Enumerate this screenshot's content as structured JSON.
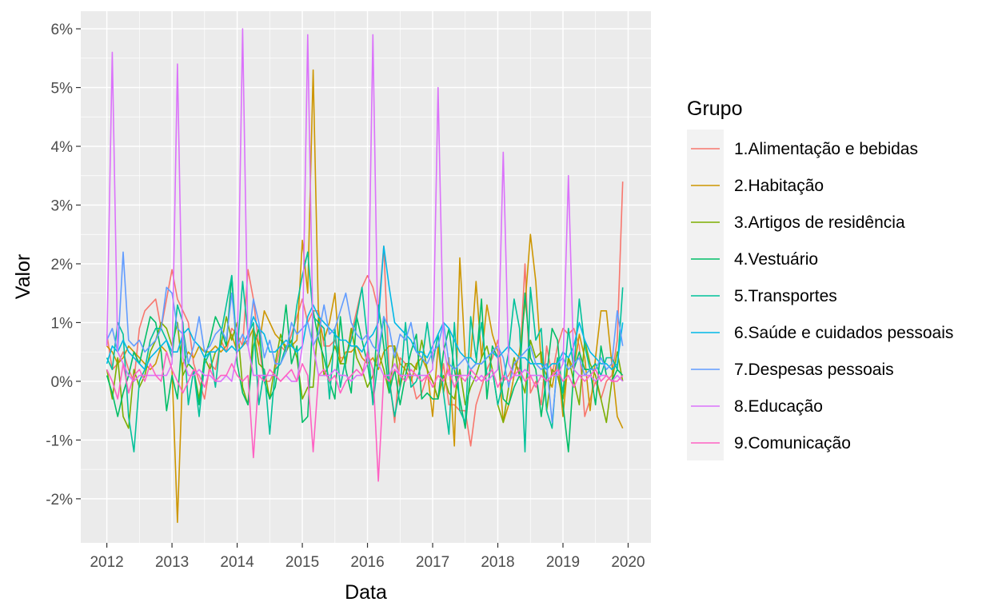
{
  "chart_data": {
    "type": "line",
    "xlabel": "Data",
    "ylabel": "Valor",
    "xlim": [
      2011.6,
      2020.35
    ],
    "ylim": [
      -2.75,
      6.3
    ],
    "x_ticks": [
      2012,
      2013,
      2014,
      2015,
      2016,
      2017,
      2018,
      2019,
      2020
    ],
    "x_tick_labels": [
      "2012",
      "2013",
      "2014",
      "2015",
      "2016",
      "2017",
      "2018",
      "2019",
      "2020"
    ],
    "y_ticks": [
      -2,
      -1,
      0,
      1,
      2,
      3,
      4,
      5,
      6
    ],
    "y_tick_labels": [
      "-2%",
      "-1%",
      "0%",
      "1%",
      "2%",
      "3%",
      "4%",
      "5%",
      "6%"
    ],
    "grid": true,
    "legend_title": "Grupo",
    "legend_position": "right",
    "x": [
      "2012-01",
      "2012-02",
      "2012-03",
      "2012-04",
      "2012-05",
      "2012-06",
      "2012-07",
      "2012-08",
      "2012-09",
      "2012-10",
      "2012-11",
      "2012-12",
      "2013-01",
      "2013-02",
      "2013-03",
      "2013-04",
      "2013-05",
      "2013-06",
      "2013-07",
      "2013-08",
      "2013-09",
      "2013-10",
      "2013-11",
      "2013-12",
      "2014-01",
      "2014-02",
      "2014-03",
      "2014-04",
      "2014-05",
      "2014-06",
      "2014-07",
      "2014-08",
      "2014-09",
      "2014-10",
      "2014-11",
      "2014-12",
      "2015-01",
      "2015-02",
      "2015-03",
      "2015-04",
      "2015-05",
      "2015-06",
      "2015-07",
      "2015-08",
      "2015-09",
      "2015-10",
      "2015-11",
      "2015-12",
      "2016-01",
      "2016-02",
      "2016-03",
      "2016-04",
      "2016-05",
      "2016-06",
      "2016-07",
      "2016-08",
      "2016-09",
      "2016-10",
      "2016-11",
      "2016-12",
      "2017-01",
      "2017-02",
      "2017-03",
      "2017-04",
      "2017-05",
      "2017-06",
      "2017-07",
      "2017-08",
      "2017-09",
      "2017-10",
      "2017-11",
      "2017-12",
      "2018-01",
      "2018-02",
      "2018-03",
      "2018-04",
      "2018-05",
      "2018-06",
      "2018-07",
      "2018-08",
      "2018-09",
      "2018-10",
      "2018-11",
      "2018-12",
      "2019-01",
      "2019-02",
      "2019-03",
      "2019-04",
      "2019-05",
      "2019-06",
      "2019-07",
      "2019-08",
      "2019-09",
      "2019-10",
      "2019-11",
      "2019-12"
    ],
    "series": [
      {
        "name": "1.Alimentação e bebidas",
        "color": "#F8766D",
        "values": [
          0.8,
          0.2,
          0.3,
          0.5,
          0.2,
          0.0,
          0.9,
          1.2,
          1.3,
          1.4,
          0.9,
          1.4,
          1.9,
          1.4,
          1.2,
          1.0,
          0.3,
          0.0,
          -0.3,
          0.3,
          0.2,
          0.7,
          0.5,
          0.9,
          0.8,
          0.6,
          1.9,
          1.4,
          0.6,
          0.0,
          0.0,
          0.2,
          0.6,
          0.5,
          0.8,
          1.1,
          1.4,
          1.0,
          1.2,
          1.2,
          0.6,
          0.6,
          0.7,
          0.4,
          0.4,
          0.8,
          1.2,
          1.6,
          1.8,
          1.6,
          1.2,
          2.3,
          0.1,
          -0.7,
          0.4,
          0.3,
          0.1,
          -0.3,
          -0.2,
          0.1,
          0.0,
          -0.3,
          0.3,
          -0.4,
          -0.4,
          -0.5,
          -0.5,
          -1.1,
          -0.4,
          -0.1,
          0.2,
          0.4,
          0.7,
          0.0,
          0.1,
          0.3,
          0.2,
          2.0,
          -0.2,
          0.0,
          -0.4,
          0.6,
          0.1,
          0.6,
          0.9,
          0.8,
          0.9,
          0.6,
          -0.6,
          -0.3,
          0.0,
          -0.3,
          0.0,
          0.1,
          0.7,
          3.4
        ]
      },
      {
        "name": "2.Habitação",
        "color": "#CD9600",
        "values": [
          0.6,
          0.5,
          0.3,
          0.4,
          0.6,
          0.5,
          0.4,
          0.3,
          0.2,
          0.3,
          0.6,
          0.5,
          0.2,
          -2.4,
          0.3,
          0.5,
          0.4,
          0.6,
          0.5,
          0.5,
          0.6,
          0.5,
          0.6,
          0.8,
          0.5,
          0.6,
          0.7,
          0.9,
          0.6,
          1.2,
          1.0,
          0.8,
          0.7,
          0.6,
          0.6,
          0.7,
          2.4,
          1.5,
          5.3,
          1.0,
          0.7,
          1.0,
          1.5,
          0.3,
          0.5,
          0.5,
          0.6,
          0.4,
          0.3,
          0.4,
          0.2,
          0.5,
          0.6,
          0.6,
          0.3,
          0.2,
          0.0,
          0.3,
          0.4,
          0.2,
          -0.6,
          0.6,
          -0.2,
          0.4,
          -1.1,
          2.1,
          0.4,
          0.4,
          1.7,
          0.4,
          1.3,
          0.8,
          0.5,
          -0.7,
          -0.4,
          0.1,
          0.5,
          1.3,
          2.5,
          1.7,
          0.3,
          0.1,
          -0.1,
          0.4,
          -0.6,
          0.4,
          0.2,
          0.8,
          0.4,
          -0.5,
          0.4,
          1.2,
          1.2,
          0.3,
          -0.6,
          -0.8
        ]
      },
      {
        "name": "3.Artigos de residência",
        "color": "#7CAE00",
        "values": [
          0.2,
          -0.3,
          0.4,
          -0.6,
          -0.8,
          0.2,
          -0.1,
          0.1,
          0.5,
          0.7,
          1.0,
          0.9,
          0.6,
          1.0,
          0.1,
          0.3,
          0.2,
          -0.3,
          0.4,
          0.2,
          0.5,
          0.6,
          1.1,
          0.7,
          1.0,
          -0.1,
          -0.4,
          0.9,
          0.3,
          0.2,
          -0.3,
          0.3,
          0.8,
          0.5,
          0.7,
          0.4,
          -0.3,
          -0.1,
          -0.1,
          1.1,
          0.1,
          0.3,
          0.6,
          0.3,
          0.3,
          0.9,
          0.4,
          0.2,
          -0.1,
          0.1,
          0.5,
          0.2,
          -0.2,
          0.6,
          -0.1,
          0.3,
          0.3,
          0.2,
          0.7,
          0.2,
          0.0,
          -0.3,
          0.1,
          -0.2,
          -0.3,
          0.2,
          -0.4,
          -0.1,
          0.1,
          0.4,
          0.6,
          0.2,
          -0.4,
          -0.7,
          -0.1,
          0.4,
          0.1,
          -0.2,
          0.7,
          0.4,
          0.5,
          -0.5,
          0.2,
          0.1,
          -0.3,
          0.4,
          0.0,
          -0.4,
          0.7,
          0.3,
          0.1,
          -0.3,
          -0.7,
          0.0,
          0.5,
          0.0
        ]
      },
      {
        "name": "4.Vestuário",
        "color": "#00BE67",
        "values": [
          0.1,
          -0.2,
          -0.6,
          -0.2,
          0.1,
          0.5,
          0.3,
          0.7,
          1.1,
          1.0,
          0.5,
          -0.5,
          0.1,
          -0.3,
          0.9,
          0.3,
          0.2,
          -0.4,
          0.4,
          0.7,
          1.1,
          0.9,
          0.6,
          1.8,
          0.3,
          -0.2,
          -0.4,
          0.6,
          0.9,
          0.0,
          -0.3,
          -0.1,
          0.5,
          1.3,
          0.3,
          0.6,
          -0.7,
          -0.6,
          1.2,
          0.7,
          0.4,
          0.0,
          -0.3,
          1.1,
          0.2,
          -0.2,
          1.1,
          0.7,
          0.3,
          -0.3,
          1.3,
          0.6,
          -0.2,
          0.2,
          -0.4,
          0.1,
          0.5,
          0.8,
          -0.3,
          -0.2,
          -0.3,
          -0.3,
          0.5,
          0.9,
          0.2,
          -0.3,
          -0.8,
          0.2,
          0.3,
          1.4,
          -0.3,
          0.6,
          0.4,
          -0.3,
          -0.4,
          -0.1,
          0.1,
          1.5,
          0.4,
          0.2,
          -0.6,
          0.1,
          0.9,
          0.7,
          -0.4,
          -1.2,
          0.2,
          0.5,
          0.2,
          0.2,
          -0.4,
          0.6,
          0.1,
          0.0,
          0.2,
          0.1
        ]
      },
      {
        "name": "5.Transportes",
        "color": "#00C19A",
        "values": [
          0.4,
          0.2,
          1.0,
          0.8,
          -0.6,
          -1.2,
          0.0,
          0.2,
          0.7,
          0.9,
          0.9,
          0.7,
          0.4,
          1.3,
          1.0,
          -0.4,
          0.2,
          -0.6,
          0.3,
          0.5,
          -0.1,
          0.8,
          1.3,
          1.8,
          0.5,
          1.7,
          0.8,
          1.0,
          -0.4,
          0.2,
          -0.9,
          0.2,
          0.3,
          0.6,
          0.6,
          1.3,
          1.8,
          2.2,
          1.1,
          1.0,
          0.9,
          -0.3,
          0.9,
          -0.1,
          0.4,
          0.7,
          1.1,
          1.6,
          0.7,
          -0.4,
          0.4,
          1.1,
          0.0,
          -0.6,
          -0.1,
          1.0,
          -0.1,
          0.0,
          0.3,
          1.0,
          0.3,
          0.8,
          -0.2,
          -0.9,
          1.0,
          -0.5,
          -0.7,
          1.1,
          0.4,
          1.0,
          0.1,
          0.2,
          -0.4,
          0.0,
          0.5,
          1.4,
          0.9,
          -1.2,
          1.6,
          0.7,
          0.9,
          -0.5,
          -0.8,
          0.4,
          -0.2,
          0.9,
          0.2,
          1.4,
          0.6,
          0.2,
          0.3,
          0.1,
          0.4,
          0.4,
          0.2,
          1.6
        ]
      },
      {
        "name": "6.Saúde e cuidados pessoais",
        "color": "#00B8E7",
        "values": [
          0.3,
          0.6,
          0.5,
          0.7,
          0.5,
          0.4,
          0.3,
          0.2,
          0.4,
          0.5,
          0.6,
          0.7,
          0.5,
          0.5,
          0.8,
          0.9,
          0.7,
          0.6,
          0.4,
          0.5,
          0.5,
          0.6,
          0.5,
          0.6,
          0.5,
          0.6,
          0.8,
          1.1,
          0.9,
          0.8,
          0.5,
          0.5,
          0.6,
          0.7,
          0.6,
          0.5,
          0.6,
          1.1,
          1.3,
          1.1,
          1.0,
          0.9,
          0.8,
          0.7,
          0.7,
          0.6,
          0.6,
          0.5,
          0.7,
          0.8,
          1.0,
          2.3,
          1.6,
          1.0,
          0.9,
          0.8,
          0.7,
          0.5,
          0.5,
          0.4,
          0.6,
          0.8,
          1.0,
          0.9,
          0.7,
          0.5,
          0.4,
          0.4,
          0.3,
          0.3,
          0.4,
          0.5,
          0.4,
          0.5,
          0.6,
          0.5,
          0.4,
          0.4,
          0.3,
          0.3,
          0.3,
          0.2,
          0.3,
          0.3,
          0.5,
          0.4,
          0.6,
          1.0,
          0.7,
          0.5,
          0.4,
          0.3,
          0.3,
          0.2,
          0.3,
          1.0
        ]
      },
      {
        "name": "7.Despesas pessoais",
        "color": "#619CFF",
        "values": [
          0.7,
          0.9,
          0.5,
          2.2,
          0.7,
          0.6,
          0.7,
          0.5,
          0.6,
          0.7,
          0.9,
          1.6,
          1.5,
          0.9,
          0.8,
          0.3,
          0.6,
          1.1,
          0.5,
          0.6,
          0.8,
          0.9,
          0.7,
          1.5,
          0.6,
          0.8,
          0.6,
          1.4,
          1.0,
          0.4,
          0.7,
          0.3,
          0.3,
          0.5,
          1.0,
          0.8,
          0.9,
          1.0,
          0.6,
          0.8,
          1.3,
          0.8,
          0.9,
          1.2,
          1.5,
          1.0,
          0.8,
          0.7,
          0.8,
          0.6,
          0.5,
          1.1,
          0.9,
          0.4,
          0.8,
          0.7,
          1.0,
          0.5,
          0.4,
          0.3,
          0.5,
          0.6,
          1.0,
          0.3,
          0.2,
          0.3,
          0.4,
          0.2,
          0.3,
          0.3,
          0.4,
          0.5,
          0.6,
          0.4,
          -0.1,
          0.3,
          0.4,
          0.5,
          0.6,
          0.3,
          0.2,
          0.3,
          -0.7,
          0.3,
          0.4,
          0.2,
          0.3,
          0.4,
          0.1,
          0.2,
          0.2,
          0.4,
          0.2,
          0.3,
          1.2,
          0.6
        ]
      },
      {
        "name": "8.Educação",
        "color": "#DB72FB",
        "values": [
          0.6,
          5.6,
          0.5,
          0.3,
          0.1,
          0.0,
          0.1,
          0.1,
          0.1,
          0.1,
          0.1,
          0.1,
          0.3,
          5.4,
          0.4,
          0.1,
          0.1,
          0.2,
          0.1,
          0.1,
          0.0,
          0.0,
          0.1,
          0.0,
          0.5,
          6.0,
          0.6,
          0.1,
          0.1,
          0.1,
          0.1,
          0.1,
          0.0,
          0.1,
          0.0,
          0.0,
          0.6,
          5.9,
          0.6,
          0.1,
          0.1,
          0.1,
          0.2,
          0.1,
          0.1,
          0.0,
          0.1,
          0.1,
          0.3,
          5.9,
          0.3,
          0.1,
          0.1,
          0.3,
          0.1,
          0.1,
          0.1,
          0.1,
          0.1,
          0.1,
          0.2,
          5.0,
          0.6,
          0.1,
          0.1,
          0.1,
          0.1,
          0.1,
          0.0,
          0.1,
          0.0,
          0.1,
          0.2,
          3.9,
          0.3,
          0.1,
          0.1,
          0.2,
          0.1,
          0.1,
          0.1,
          0.0,
          0.1,
          0.1,
          0.3,
          3.5,
          0.2,
          0.1,
          0.1,
          0.1,
          0.0,
          0.1,
          0.1,
          0.0,
          0.1,
          0.0
        ]
      },
      {
        "name": "9.Comunicação",
        "color": "#FF61C3",
        "values": [
          0.2,
          0.0,
          -0.3,
          0.3,
          -0.2,
          0.1,
          0.2,
          0.0,
          0.3,
          0.1,
          0.0,
          0.5,
          0.2,
          0.0,
          -0.2,
          0.0,
          0.2,
          0.1,
          -0.1,
          0.2,
          0.0,
          0.1,
          0.1,
          0.3,
          0.1,
          0.0,
          0.1,
          -1.3,
          0.1,
          0.0,
          0.2,
          0.1,
          0.0,
          0.1,
          0.2,
          0.0,
          0.3,
          0.1,
          -1.2,
          0.1,
          0.2,
          0.0,
          0.1,
          -0.2,
          0.0,
          0.1,
          0.2,
          0.1,
          0.5,
          0.2,
          -1.7,
          0.1,
          0.0,
          0.2,
          0.1,
          0.0,
          0.2,
          0.1,
          0.0,
          0.1,
          -0.1,
          0.1,
          0.0,
          0.2,
          -0.1,
          0.1,
          0.0,
          0.2,
          0.1,
          0.0,
          0.1,
          0.2,
          -0.1,
          0.1,
          0.0,
          0.1,
          0.2,
          0.0,
          0.1,
          -0.1,
          0.1,
          0.0,
          0.1,
          0.2,
          0.0,
          0.1,
          -0.1,
          0.1,
          0.0,
          0.1,
          0.2,
          0.0,
          0.1,
          0.0,
          0.0,
          0.1
        ]
      }
    ]
  }
}
